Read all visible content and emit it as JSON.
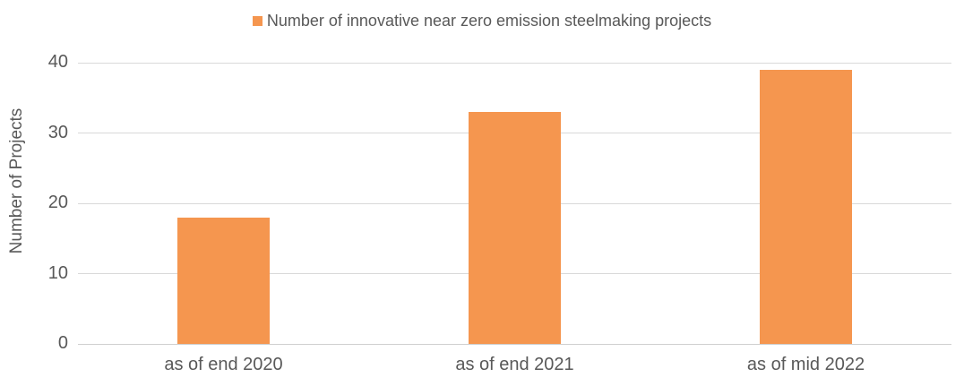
{
  "chart_data": {
    "type": "bar",
    "title": "",
    "legend_label": "Number of innovative near zero emission steelmaking projects",
    "legend_position": "top-center",
    "categories": [
      "as of end 2020",
      "as of end 2021",
      "as of mid 2022"
    ],
    "values": [
      18,
      33,
      39
    ],
    "xlabel": "",
    "ylabel": "Number of Projects",
    "ylim": [
      0,
      40
    ],
    "yticks": [
      0,
      10,
      20,
      30,
      40
    ],
    "grid": true,
    "colors": {
      "bar": "#F5964F",
      "text": "#595959",
      "gridline": "#D9D9D9",
      "background": "#FFFFFF"
    }
  }
}
